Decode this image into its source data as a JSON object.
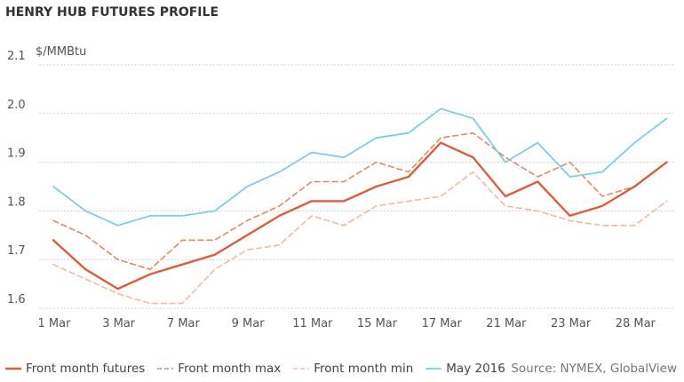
{
  "chart_data": {
    "type": "line",
    "title": "HENRY HUB FUTURES PROFILE",
    "ylabel": "$/MMBtu",
    "xlabel": "",
    "source": "Source: NYMEX, GlobalView",
    "ylim": [
      1.6,
      2.1
    ],
    "yticks": [
      "1.6",
      "1.7",
      "1.8",
      "1.9",
      "2.0",
      "2.1"
    ],
    "xtick_labels": [
      "1 Mar",
      "3 Mar",
      "7 Mar",
      "9 Mar",
      "11 Mar",
      "15 Mar",
      "17 Mar",
      "21 Mar",
      "23 Mar",
      "28 Mar"
    ],
    "xtick_index": [
      0,
      2,
      4,
      6,
      8,
      10,
      12,
      14,
      16,
      18
    ],
    "n_points": 20,
    "grid": "horizontal dotted",
    "legend_position": "bottom",
    "series": [
      {
        "name": "Front month futures",
        "color": "#d9603b",
        "style": "solid",
        "values": [
          1.74,
          1.68,
          1.64,
          1.67,
          1.69,
          1.71,
          1.75,
          1.79,
          1.82,
          1.82,
          1.85,
          1.87,
          1.94,
          1.91,
          1.83,
          1.86,
          1.79,
          1.81,
          1.85,
          1.9
        ]
      },
      {
        "name": "Front month max",
        "color": "#e48865",
        "style": "dashed",
        "values": [
          1.78,
          1.75,
          1.7,
          1.68,
          1.74,
          1.74,
          1.78,
          1.81,
          1.86,
          1.86,
          1.9,
          1.88,
          1.95,
          1.96,
          1.91,
          1.87,
          1.9,
          1.83,
          1.85,
          1.9
        ]
      },
      {
        "name": "Front month min",
        "color": "#f2b9a0",
        "style": "dashed",
        "values": [
          1.69,
          1.66,
          1.63,
          1.61,
          1.61,
          1.68,
          1.72,
          1.73,
          1.79,
          1.77,
          1.81,
          1.82,
          1.83,
          1.88,
          1.81,
          1.8,
          1.78,
          1.77,
          1.77,
          1.82
        ]
      },
      {
        "name": "May 2016",
        "color": "#7fcde8",
        "style": "solid",
        "values": [
          1.85,
          1.8,
          1.77,
          1.79,
          1.79,
          1.8,
          1.85,
          1.88,
          1.92,
          1.91,
          1.95,
          1.96,
          2.01,
          1.99,
          1.9,
          1.94,
          1.87,
          1.88,
          1.94,
          1.99
        ]
      }
    ]
  }
}
